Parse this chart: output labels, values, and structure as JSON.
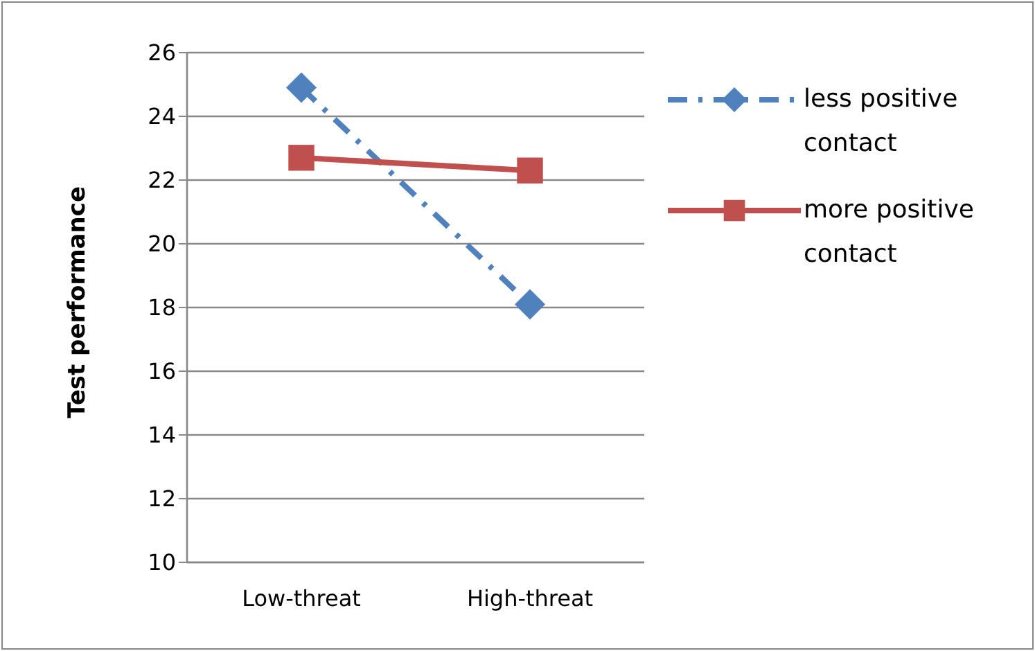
{
  "chart_data": {
    "type": "line",
    "ylabel": "Test performance",
    "categories": [
      "Low-threat",
      "High-threat"
    ],
    "series": [
      {
        "name": "less positive contact",
        "color": "#4f81bd",
        "values": [
          24.9,
          18.1
        ],
        "marker": "diamond",
        "line_style": "dashed"
      },
      {
        "name": "more positive contact",
        "color": "#c0504d",
        "values": [
          22.7,
          22.3
        ],
        "marker": "square",
        "line_style": "solid"
      }
    ],
    "ylim": [
      10,
      26
    ],
    "yticks": [
      10,
      12,
      14,
      16,
      18,
      20,
      22,
      24,
      26
    ],
    "grid": "y",
    "legend": "right"
  }
}
